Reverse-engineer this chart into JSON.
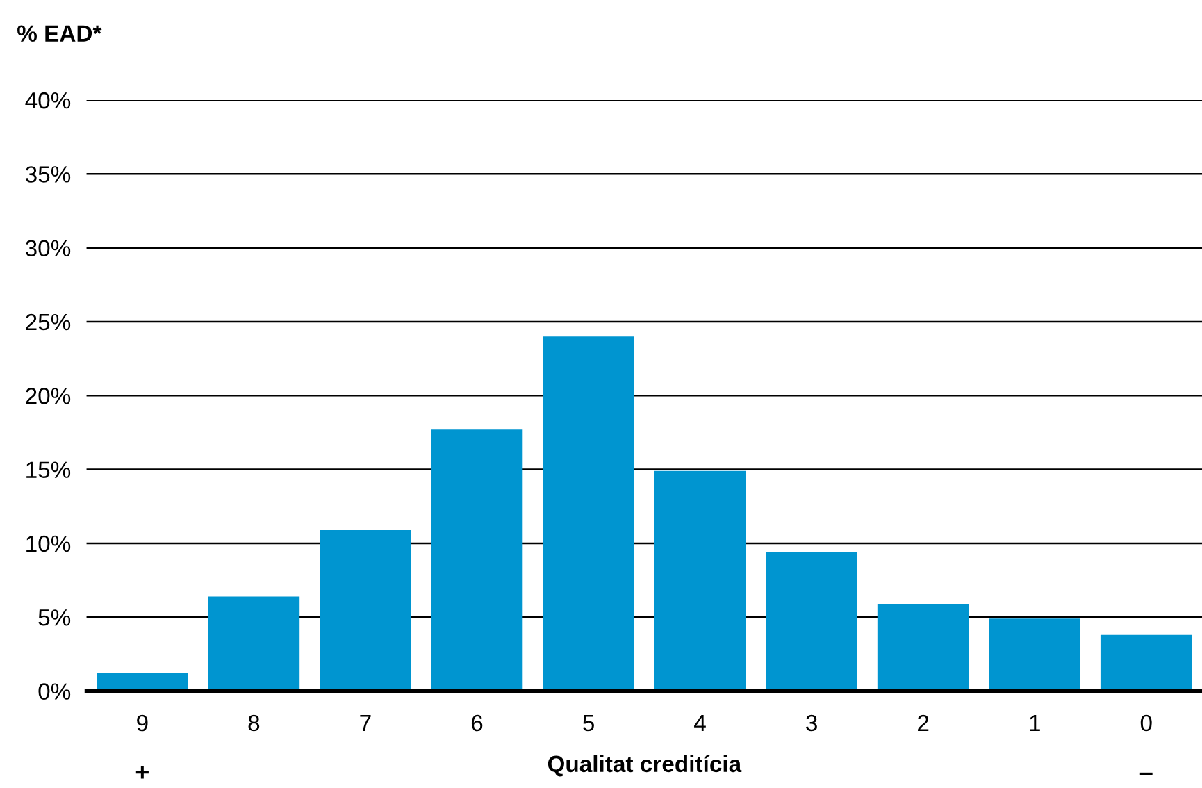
{
  "chart_data": {
    "type": "bar",
    "ylabel": "% EAD*",
    "xlabel": "Qualitat creditícia",
    "categories": [
      "9",
      "8",
      "7",
      "6",
      "5",
      "4",
      "3",
      "2",
      "1",
      "0"
    ],
    "values": [
      1.2,
      6.4,
      10.9,
      17.7,
      24.0,
      14.9,
      9.4,
      5.9,
      4.9,
      3.8
    ],
    "color": "#0095d0",
    "ylim": [
      0,
      40
    ],
    "yticks": [
      {
        "value": 0,
        "label": "0%"
      },
      {
        "value": 5,
        "label": "5%"
      },
      {
        "value": 10,
        "label": "10%"
      },
      {
        "value": 15,
        "label": "15%"
      },
      {
        "value": 20,
        "label": "20%"
      },
      {
        "value": 25,
        "label": "25%"
      },
      {
        "value": 30,
        "label": "30%"
      },
      {
        "value": 35,
        "label": "35%"
      },
      {
        "value": 40,
        "label": "40%"
      }
    ],
    "grid": "y",
    "annotations": [
      "+",
      "–"
    ]
  }
}
